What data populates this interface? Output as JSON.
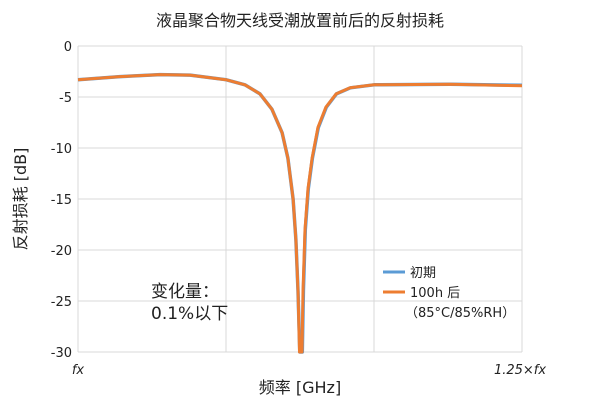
{
  "chart_data": {
    "type": "line",
    "title": "液晶聚合物天线受潮放置前后的反射损耗",
    "xlabel": "频率 [GHz]",
    "ylabel": "反射损耗 [dB]",
    "x_tick_labels": [
      "fx",
      "1.25×fx"
    ],
    "xlim": [
      1.0,
      1.25
    ],
    "x_unit": "fx",
    "ylim": [
      -30,
      0
    ],
    "y_ticks": [
      0,
      -5,
      -10,
      -15,
      -20,
      -25,
      -30
    ],
    "grid": true,
    "legend_placement": "bottom-right",
    "annotation": [
      "变化量：",
      "0.1%以下"
    ],
    "legend_note": "（85°C/85%RH）",
    "series": [
      {
        "name": "初期",
        "color": "#5b9bd5",
        "x": [
          1.0,
          1.0236,
          1.0462,
          1.0631,
          1.0833,
          1.094,
          1.1025,
          1.1092,
          1.1149,
          1.1182,
          1.1211,
          1.1227,
          1.1239,
          1.1249,
          1.1263,
          1.1269,
          1.128,
          1.1297,
          1.132,
          1.1353,
          1.1398,
          1.1455,
          1.1534,
          1.1667,
          1.2095,
          1.25
        ],
        "y": [
          -3.3,
          -3.0,
          -2.8,
          -2.85,
          -3.3,
          -3.8,
          -4.7,
          -6.2,
          -8.5,
          -11,
          -15,
          -19,
          -24,
          -30,
          -30,
          -24,
          -18,
          -14,
          -11,
          -8,
          -6,
          -4.7,
          -4.1,
          -3.8,
          -3.75,
          -3.85
        ]
      },
      {
        "name": "100h 后",
        "color": "#ed7d31",
        "x": [
          1.0,
          1.0236,
          1.0462,
          1.0631,
          1.0833,
          1.094,
          1.1025,
          1.1092,
          1.1149,
          1.1182,
          1.1211,
          1.1227,
          1.1239,
          1.1247,
          1.1261,
          1.1267,
          1.1278,
          1.1295,
          1.1318,
          1.1351,
          1.1396,
          1.1453,
          1.1532,
          1.1667,
          1.2095,
          1.25
        ],
        "y": [
          -3.3,
          -3.0,
          -2.8,
          -2.85,
          -3.3,
          -3.8,
          -4.7,
          -6.2,
          -8.5,
          -11,
          -15,
          -19,
          -24,
          -30,
          -30,
          -24,
          -18,
          -14,
          -11,
          -8,
          -6,
          -4.7,
          -4.1,
          -3.8,
          -3.75,
          -3.9
        ]
      }
    ]
  }
}
